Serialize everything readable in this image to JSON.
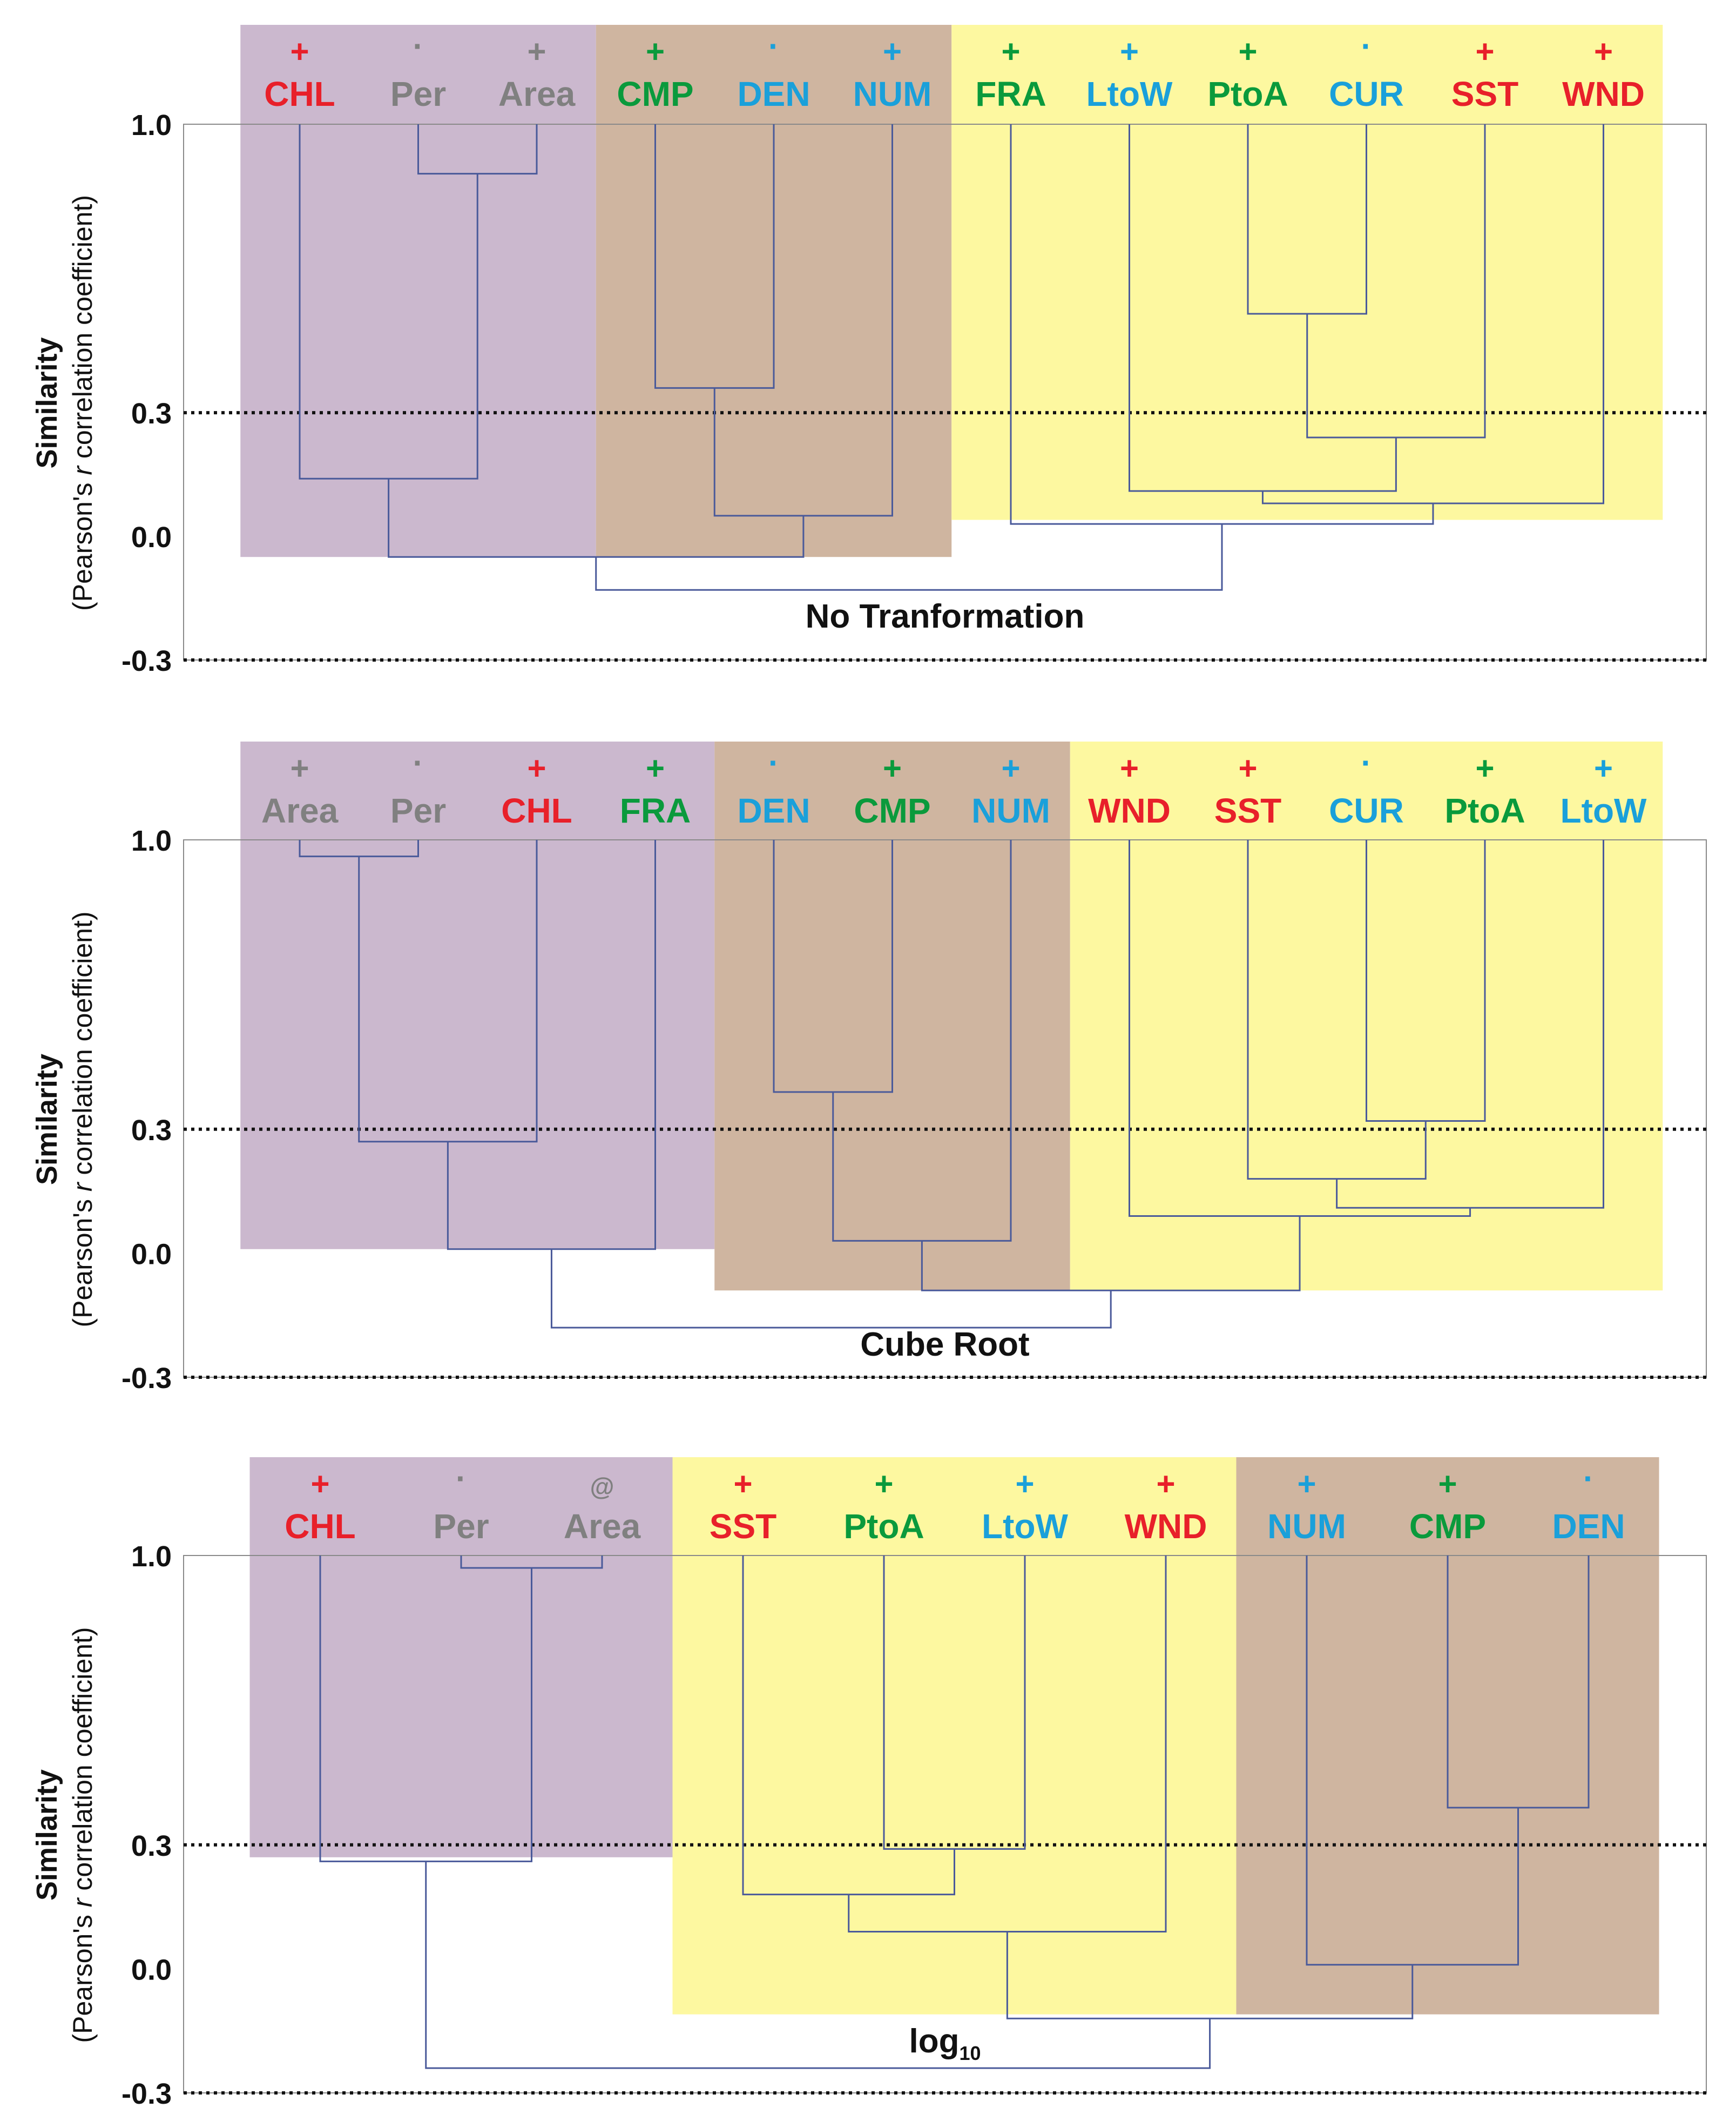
{
  "figure": {
    "ylabel_main": "Similarity",
    "ylabel_sub_pre": "(Pearson's ",
    "ylabel_sub_italic": "r",
    "ylabel_sub_post": " correlation coefficient)"
  },
  "chart_data": [
    {
      "type": "dendrogram",
      "title": "No Tranformation",
      "title_sub": "",
      "ylabel": "Similarity (Pearson's r correlation coefficient)",
      "ylim": [
        -0.3,
        1.0
      ],
      "yticks": [
        1.0,
        0.3,
        0.0,
        -0.3
      ],
      "ytick_labels": [
        "1.0",
        "0.3",
        "0.0",
        "-0.3"
      ],
      "threshold": 0.3,
      "leaves": [
        {
          "label": "CHL",
          "sign": "+",
          "color": "#e8202a"
        },
        {
          "label": "Per",
          "sign": "·",
          "color": "#808080"
        },
        {
          "label": "Area",
          "sign": "+",
          "color": "#808080"
        },
        {
          "label": "CMP",
          "sign": "+",
          "color": "#0a9a3c"
        },
        {
          "label": "DEN",
          "sign": "·",
          "color": "#1aa0da"
        },
        {
          "label": "NUM",
          "sign": "+",
          "color": "#1aa0da"
        },
        {
          "label": "FRA",
          "sign": "+",
          "color": "#0a9a3c"
        },
        {
          "label": "LtoW",
          "sign": "+",
          "color": "#1aa0da"
        },
        {
          "label": "PtoA",
          "sign": "+",
          "color": "#0a9a3c"
        },
        {
          "label": "CUR",
          "sign": "·",
          "color": "#1aa0da"
        },
        {
          "label": "SST",
          "sign": "+",
          "color": "#e8202a"
        },
        {
          "label": "WND",
          "sign": "+",
          "color": "#e8202a"
        }
      ],
      "merges": [
        {
          "a": 1,
          "b": 2,
          "height": 0.88
        },
        {
          "a": 0,
          "b": -1,
          "height": 0.14
        },
        {
          "a": 3,
          "b": 4,
          "height": 0.36
        },
        {
          "a": 5,
          "b": -3,
          "height": 0.05
        },
        {
          "a": 8,
          "b": 9,
          "height": 0.54
        },
        {
          "a": 10,
          "b": -5,
          "height": 0.24
        },
        {
          "a": 7,
          "b": -6,
          "height": 0.11
        },
        {
          "a": 11,
          "b": -7,
          "height": 0.08
        },
        {
          "a": 6,
          "b": -8,
          "height": 0.03
        },
        {
          "a": -2,
          "b": -4,
          "height": -0.05
        },
        {
          "a": -10,
          "b": -9,
          "height": -0.13
        }
      ],
      "bands": [
        {
          "from": 0,
          "to": 2,
          "bottom": -0.05,
          "color": "#cbb8ce"
        },
        {
          "from": 3,
          "to": 5,
          "bottom": -0.05,
          "color": "#cfb5a0"
        },
        {
          "from": 6,
          "to": 11,
          "bottom": 0.04,
          "color": "#fdf8a0"
        }
      ]
    },
    {
      "type": "dendrogram",
      "title": "Cube Root",
      "title_sub": "",
      "ylabel": "Similarity (Pearson's r correlation coefficient)",
      "ylim": [
        -0.3,
        1.0
      ],
      "yticks": [
        1.0,
        0.3,
        0.0,
        -0.3
      ],
      "ytick_labels": [
        "1.0",
        "0.3",
        "0.0",
        "-0.3"
      ],
      "threshold": 0.3,
      "leaves": [
        {
          "label": "Area",
          "sign": "+",
          "color": "#808080"
        },
        {
          "label": "Per",
          "sign": "·",
          "color": "#808080"
        },
        {
          "label": "CHL",
          "sign": "+",
          "color": "#e8202a"
        },
        {
          "label": "FRA",
          "sign": "+",
          "color": "#0a9a3c"
        },
        {
          "label": "DEN",
          "sign": "·",
          "color": "#1aa0da"
        },
        {
          "label": "CMP",
          "sign": "+",
          "color": "#0a9a3c"
        },
        {
          "label": "NUM",
          "sign": "+",
          "color": "#1aa0da"
        },
        {
          "label": "WND",
          "sign": "+",
          "color": "#e8202a"
        },
        {
          "label": "SST",
          "sign": "+",
          "color": "#e8202a"
        },
        {
          "label": "CUR",
          "sign": "·",
          "color": "#1aa0da"
        },
        {
          "label": "PtoA",
          "sign": "+",
          "color": "#0a9a3c"
        },
        {
          "label": "LtoW",
          "sign": "+",
          "color": "#1aa0da"
        }
      ],
      "merges": [
        {
          "a": 0,
          "b": 1,
          "height": 0.96
        },
        {
          "a": -1,
          "b": 2,
          "height": 0.27
        },
        {
          "a": -2,
          "b": 3,
          "height": 0.01
        },
        {
          "a": 4,
          "b": 5,
          "height": 0.39
        },
        {
          "a": -4,
          "b": 6,
          "height": 0.03
        },
        {
          "a": 9,
          "b": 10,
          "height": 0.32
        },
        {
          "a": 8,
          "b": -6,
          "height": 0.18
        },
        {
          "a": -7,
          "b": 11,
          "height": 0.11
        },
        {
          "a": 7,
          "b": -8,
          "height": 0.09
        },
        {
          "a": -5,
          "b": -9,
          "height": -0.09
        },
        {
          "a": -3,
          "b": -10,
          "height": -0.18
        }
      ],
      "bands": [
        {
          "from": 0,
          "to": 3,
          "bottom": 0.01,
          "color": "#cbb8ce"
        },
        {
          "from": 4,
          "to": 6,
          "bottom": -0.09,
          "color": "#cfb5a0"
        },
        {
          "from": 7,
          "to": 11,
          "bottom": -0.09,
          "color": "#fdf8a0"
        }
      ]
    },
    {
      "type": "dendrogram",
      "title": "log",
      "title_sub": "10",
      "ylabel": "Similarity (Pearson's r correlation coefficient)",
      "ylim": [
        -0.3,
        1.0
      ],
      "yticks": [
        1.0,
        0.3,
        0.0,
        -0.3
      ],
      "ytick_labels": [
        "1.0",
        "0.3",
        "0.0",
        "-0.3"
      ],
      "threshold": 0.3,
      "leaves": [
        {
          "label": "CHL",
          "sign": "+",
          "color": "#e8202a"
        },
        {
          "label": "Per",
          "sign": "·",
          "color": "#808080"
        },
        {
          "label": "Area",
          "sign": "@",
          "color": "#808080"
        },
        {
          "label": "SST",
          "sign": "+",
          "color": "#e8202a"
        },
        {
          "label": "PtoA",
          "sign": "+",
          "color": "#0a9a3c"
        },
        {
          "label": "LtoW",
          "sign": "+",
          "color": "#1aa0da"
        },
        {
          "label": "WND",
          "sign": "+",
          "color": "#e8202a"
        },
        {
          "label": "NUM",
          "sign": "+",
          "color": "#1aa0da"
        },
        {
          "label": "CMP",
          "sign": "+",
          "color": "#0a9a3c"
        },
        {
          "label": "DEN",
          "sign": "·",
          "color": "#1aa0da"
        }
      ],
      "merges": [
        {
          "a": 1,
          "b": 2,
          "height": 0.97
        },
        {
          "a": 0,
          "b": -1,
          "height": 0.26
        },
        {
          "a": 4,
          "b": 5,
          "height": 0.29
        },
        {
          "a": 3,
          "b": -3,
          "height": 0.18
        },
        {
          "a": -4,
          "b": 6,
          "height": 0.09
        },
        {
          "a": 8,
          "b": 9,
          "height": 0.39
        },
        {
          "a": 7,
          "b": -6,
          "height": 0.01
        },
        {
          "a": -5,
          "b": -7,
          "height": -0.12
        },
        {
          "a": -2,
          "b": -8,
          "height": -0.24
        }
      ],
      "bands": [
        {
          "from": 0,
          "to": 2,
          "bottom": 0.27,
          "color": "#cbb8ce"
        },
        {
          "from": 3,
          "to": 6,
          "bottom": -0.11,
          "color": "#fdf8a0"
        },
        {
          "from": 7,
          "to": 9,
          "bottom": -0.11,
          "color": "#cfb5a0"
        }
      ]
    }
  ]
}
